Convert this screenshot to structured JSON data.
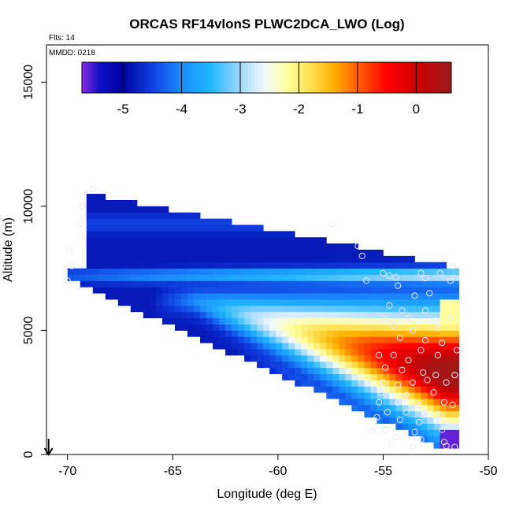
{
  "chart_data": {
    "type": "heatmap",
    "title": "ORCAS RF14vlonS PLWC2DCA_LWO (Log)",
    "subtitle_flts": "Flts: 14",
    "subtitle_mmdd": "MMDD: 0218",
    "xlabel": "Longitude (deg E)",
    "ylabel": "Altitude (m)",
    "xlim": [
      -71,
      -50
    ],
    "ylim": [
      0,
      16500
    ],
    "xticks": [
      -70,
      -65,
      -60,
      -55,
      -50
    ],
    "yticks": [
      0,
      5000,
      10000,
      15000
    ],
    "colorbar": {
      "range": [
        -5.7,
        0.6
      ],
      "ticks": [
        -5,
        -4,
        -3,
        -2,
        -1,
        0
      ],
      "tick_labels": [
        "-5",
        "-4",
        "-3",
        "-2",
        "-1",
        "0"
      ],
      "stops": [
        {
          "v": -5.7,
          "color": "#8a2be2"
        },
        {
          "v": -5.4,
          "color": "#1010c8"
        },
        {
          "v": -5.0,
          "color": "#0000a0"
        },
        {
          "v": -4.5,
          "color": "#1040e0"
        },
        {
          "v": -4.0,
          "color": "#1a8cff"
        },
        {
          "v": -3.5,
          "color": "#20b8ff"
        },
        {
          "v": -3.0,
          "color": "#a0d8ff"
        },
        {
          "v": -2.6,
          "color": "#f0f8ff"
        },
        {
          "v": -2.2,
          "color": "#ffffa0"
        },
        {
          "v": -1.8,
          "color": "#ffe050"
        },
        {
          "v": -1.4,
          "color": "#ffb000"
        },
        {
          "v": -1.0,
          "color": "#ff6000"
        },
        {
          "v": -0.5,
          "color": "#ff0000"
        },
        {
          "v": 0.0,
          "color": "#d00000"
        },
        {
          "v": 0.6,
          "color": "#9a1a1a"
        }
      ]
    },
    "field_description": "log10 liquid water content vs longitude and altitude; cloud wedge from -70 to -52 deg E, max near -53 deg E at 3000-5000 m",
    "flight_markers": [
      {
        "lon": -68.8,
        "alt": 10700
      },
      {
        "lon": -69.3,
        "alt": 10000
      },
      {
        "lon": -69.4,
        "alt": 9300
      },
      {
        "lon": -69.9,
        "alt": 8200
      },
      {
        "lon": -69.8,
        "alt": 7600
      },
      {
        "lon": -70.0,
        "alt": 7000
      },
      {
        "lon": -57.4,
        "alt": 9300
      },
      {
        "lon": -56.2,
        "alt": 8400
      },
      {
        "lon": -56.0,
        "alt": 8000
      },
      {
        "lon": -55.8,
        "alt": 7000
      },
      {
        "lon": -55.0,
        "alt": 7300
      },
      {
        "lon": -54.7,
        "alt": 7200
      },
      {
        "lon": -54.4,
        "alt": 7150
      },
      {
        "lon": -53.2,
        "alt": 7300
      },
      {
        "lon": -53.0,
        "alt": 7100
      },
      {
        "lon": -52.3,
        "alt": 7300
      },
      {
        "lon": -51.7,
        "alt": 7600
      },
      {
        "lon": -51.8,
        "alt": 7000
      },
      {
        "lon": -54.3,
        "alt": 6800
      },
      {
        "lon": -53.5,
        "alt": 6400
      },
      {
        "lon": -52.8,
        "alt": 6500
      },
      {
        "lon": -54.7,
        "alt": 6000
      },
      {
        "lon": -54.1,
        "alt": 5800
      },
      {
        "lon": -53.0,
        "alt": 5800
      },
      {
        "lon": -55.0,
        "alt": 5500
      },
      {
        "lon": -53.8,
        "alt": 5500
      },
      {
        "lon": -52.5,
        "alt": 5400
      },
      {
        "lon": -54.5,
        "alt": 5200
      },
      {
        "lon": -53.6,
        "alt": 5000
      },
      {
        "lon": -52.4,
        "alt": 5100
      },
      {
        "lon": -54.2,
        "alt": 4700
      },
      {
        "lon": -53.0,
        "alt": 4600
      },
      {
        "lon": -52.2,
        "alt": 4500
      },
      {
        "lon": -55.2,
        "alt": 4000
      },
      {
        "lon": -54.5,
        "alt": 4000
      },
      {
        "lon": -53.8,
        "alt": 3800
      },
      {
        "lon": -53.2,
        "alt": 4200
      },
      {
        "lon": -52.4,
        "alt": 4000
      },
      {
        "lon": -54.9,
        "alt": 3500
      },
      {
        "lon": -54.1,
        "alt": 3400
      },
      {
        "lon": -53.1,
        "alt": 3300
      },
      {
        "lon": -52.5,
        "alt": 3200
      },
      {
        "lon": -55.0,
        "alt": 2900
      },
      {
        "lon": -54.3,
        "alt": 2800
      },
      {
        "lon": -53.6,
        "alt": 2900
      },
      {
        "lon": -52.9,
        "alt": 3000
      },
      {
        "lon": -52.0,
        "alt": 2900
      },
      {
        "lon": -55.1,
        "alt": 2500
      },
      {
        "lon": -53.9,
        "alt": 2400
      },
      {
        "lon": -52.6,
        "alt": 2500
      },
      {
        "lon": -55.2,
        "alt": 2100
      },
      {
        "lon": -54.3,
        "alt": 2100
      },
      {
        "lon": -53.3,
        "alt": 2000
      },
      {
        "lon": -52.1,
        "alt": 2100
      },
      {
        "lon": -54.8,
        "alt": 1700
      },
      {
        "lon": -53.9,
        "alt": 1700
      },
      {
        "lon": -53.0,
        "alt": 1700
      },
      {
        "lon": -52.3,
        "alt": 1600
      },
      {
        "lon": -55.3,
        "alt": 1500
      },
      {
        "lon": -54.2,
        "alt": 1400
      },
      {
        "lon": -53.3,
        "alt": 1300
      },
      {
        "lon": -52.0,
        "alt": 1200
      },
      {
        "lon": -54.9,
        "alt": 1000
      },
      {
        "lon": -53.5,
        "alt": 900
      },
      {
        "lon": -52.2,
        "alt": 1000
      },
      {
        "lon": -55.5,
        "alt": 950
      },
      {
        "lon": -54.4,
        "alt": 700
      },
      {
        "lon": -53.2,
        "alt": 600
      },
      {
        "lon": -52.1,
        "alt": 500
      },
      {
        "lon": -54.6,
        "alt": 400
      },
      {
        "lon": -53.6,
        "alt": 300
      },
      {
        "lon": -52.0,
        "alt": 350
      },
      {
        "lon": -51.7,
        "alt": 2000
      },
      {
        "lon": -51.6,
        "alt": 3200
      },
      {
        "lon": -51.5,
        "alt": 4200
      },
      {
        "lon": -51.8,
        "alt": 5500
      },
      {
        "lon": -51.6,
        "alt": 300
      }
    ],
    "home_marker": {
      "lon": -70.9,
      "alt": 0,
      "label": "arrow"
    }
  }
}
